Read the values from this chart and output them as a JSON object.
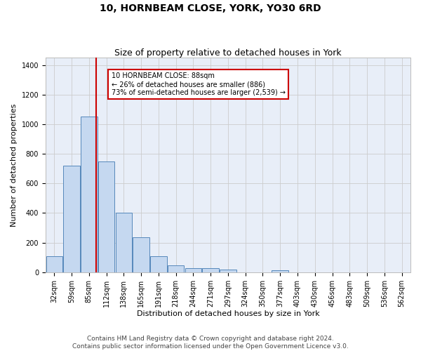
{
  "title": "10, HORNBEAM CLOSE, YORK, YO30 6RD",
  "subtitle": "Size of property relative to detached houses in York",
  "xlabel": "Distribution of detached houses by size in York",
  "ylabel": "Number of detached properties",
  "footer_line1": "Contains HM Land Registry data © Crown copyright and database right 2024.",
  "footer_line2": "Contains public sector information licensed under the Open Government Licence v3.0.",
  "annotation_line1": "10 HORNBEAM CLOSE: 88sqm",
  "annotation_line2": "← 26% of detached houses are smaller (886)",
  "annotation_line3": "73% of semi-detached houses are larger (2,539) →",
  "bar_labels": [
    "32sqm",
    "59sqm",
    "85sqm",
    "112sqm",
    "138sqm",
    "165sqm",
    "191sqm",
    "218sqm",
    "244sqm",
    "271sqm",
    "297sqm",
    "324sqm",
    "350sqm",
    "377sqm",
    "403sqm",
    "430sqm",
    "456sqm",
    "483sqm",
    "509sqm",
    "536sqm",
    "562sqm"
  ],
  "bar_values": [
    110,
    720,
    1050,
    750,
    400,
    235,
    110,
    45,
    28,
    28,
    20,
    0,
    0,
    15,
    0,
    0,
    0,
    0,
    0,
    0,
    0
  ],
  "bar_color": "#c5d8f0",
  "bar_edge_color": "#5588bb",
  "vline_color": "#cc0000",
  "ylim": [
    0,
    1450
  ],
  "yticks": [
    0,
    200,
    400,
    600,
    800,
    1000,
    1200,
    1400
  ],
  "grid_color": "#cccccc",
  "bg_color": "#e8eef8",
  "annotation_box_color": "#cc0000",
  "title_fontsize": 10,
  "subtitle_fontsize": 9,
  "axis_label_fontsize": 8,
  "tick_fontsize": 7,
  "footer_fontsize": 6.5
}
